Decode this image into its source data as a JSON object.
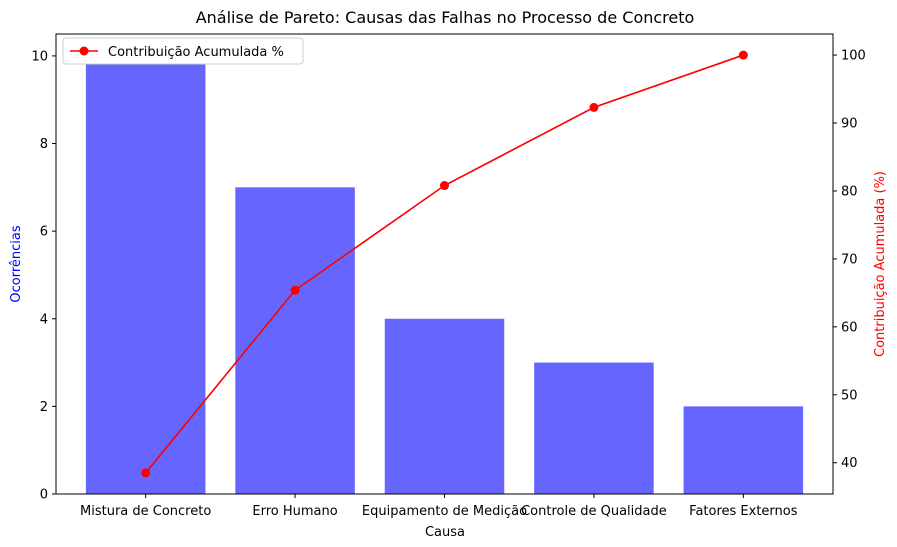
{
  "chart_data": {
    "type": "bar",
    "title": "Análise de Pareto: Causas das Falhas no Processo de Concreto",
    "xlabel": "Causa",
    "ylabel_left": "Ocorrências",
    "ylabel_right": "Contribuição Acumulada (%)",
    "categories": [
      "Mistura de Concreto",
      "Erro Humano",
      "Equipamento de Medição",
      "Controle de Qualidade",
      "Fatores Externos"
    ],
    "bars": {
      "values": [
        10,
        7,
        4,
        3,
        2
      ],
      "color": "#6666ff"
    },
    "line": {
      "name": "Contribuição Acumulada %",
      "values": [
        38.5,
        65.4,
        80.8,
        92.3,
        100
      ],
      "color": "#ff0000",
      "marker": "circle"
    },
    "ylim_left": [
      0,
      10.5
    ],
    "yticks_left": [
      0,
      2,
      4,
      6,
      8,
      10
    ],
    "ylim_right": [
      35.4,
      103.1
    ],
    "yticks_right": [
      40,
      50,
      60,
      70,
      80,
      90,
      100
    ],
    "left_label_color": "#0000ff",
    "right_label_color": "#ff0000",
    "grid": false,
    "legend_position": "top-left"
  }
}
